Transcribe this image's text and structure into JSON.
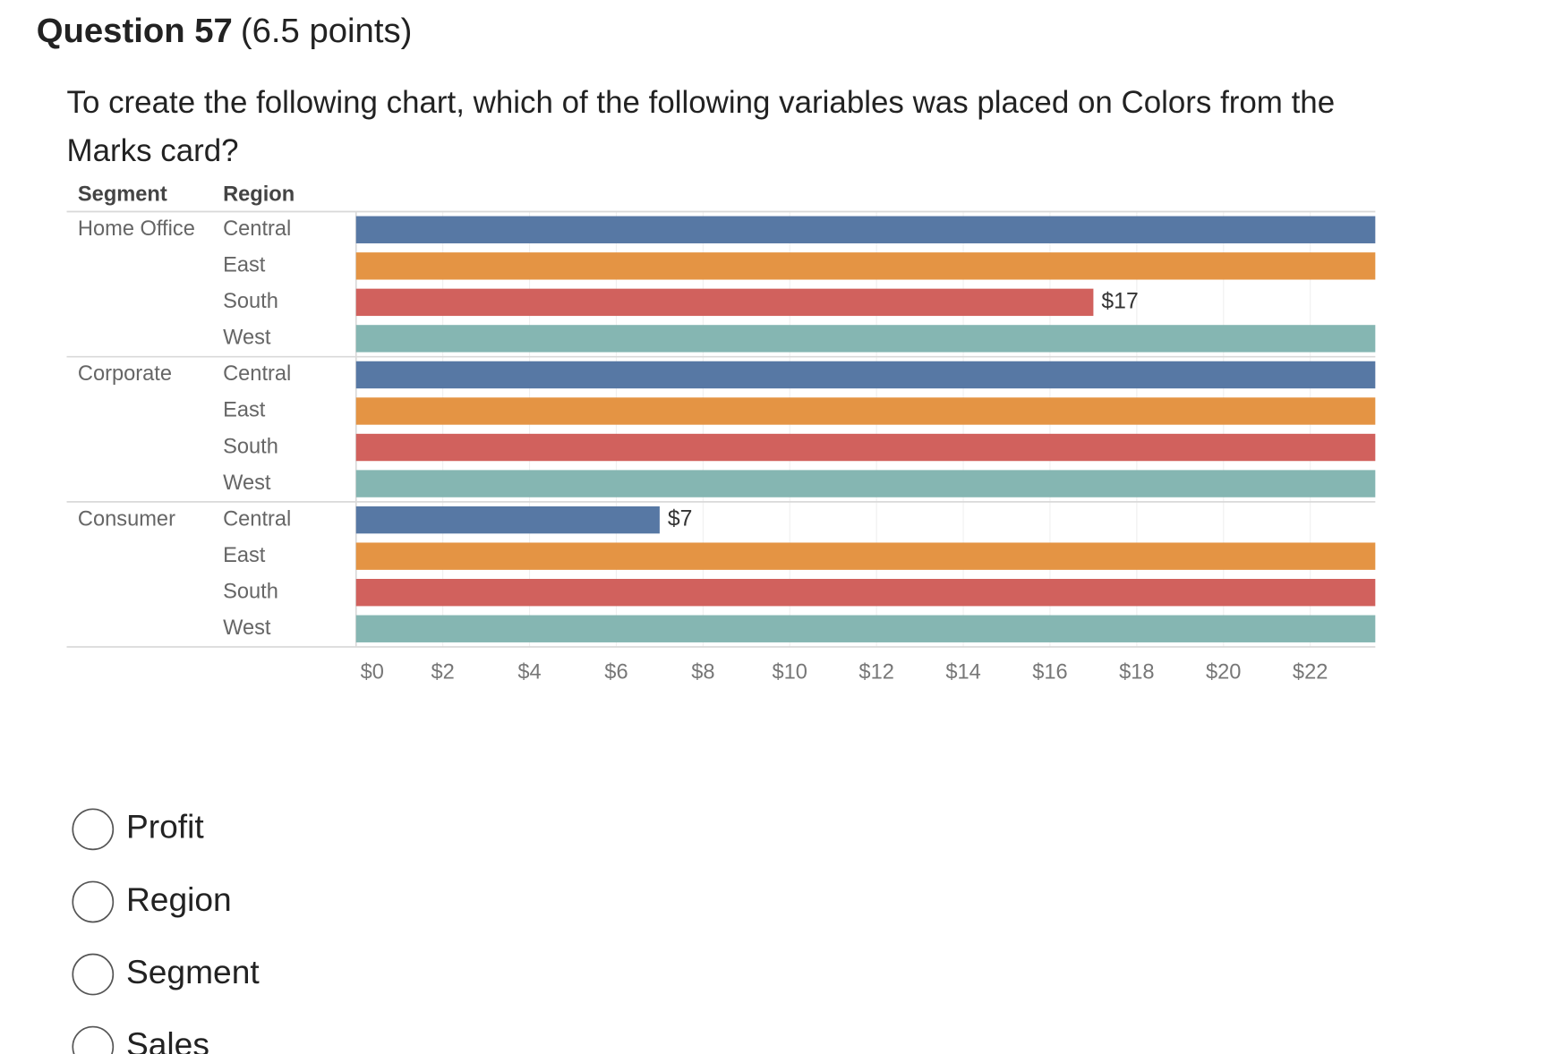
{
  "header": {
    "label": "Question 57",
    "points": "(6.5 points)"
  },
  "question": "To create the following chart, which of the following variables was placed on Colors from the Marks card?",
  "chart_data": {
    "type": "bar",
    "orientation": "horizontal",
    "row_headers": [
      "Segment",
      "Region"
    ],
    "groups": [
      "Home Office",
      "Corporate",
      "Consumer"
    ],
    "categories": [
      "Central",
      "East",
      "South",
      "West",
      "Central",
      "East",
      "South",
      "West",
      "Central",
      "East",
      "South",
      "West"
    ],
    "values": [
      23.5,
      23.5,
      17,
      23.5,
      23.5,
      23.5,
      23.5,
      23.5,
      7,
      23.5,
      23.5,
      23.5
    ],
    "value_labels": [
      null,
      null,
      "$17",
      null,
      null,
      null,
      null,
      null,
      "$7",
      null,
      null,
      null
    ],
    "colors": [
      "#5778a4",
      "#e49444",
      "#d1615d",
      "#85b6b2"
    ],
    "xlim": [
      0,
      23.5
    ],
    "xticks": [
      {
        "value": 0,
        "label": "$0"
      },
      {
        "value": 2,
        "label": "$2"
      },
      {
        "value": 4,
        "label": "$4"
      },
      {
        "value": 6,
        "label": "$6"
      },
      {
        "value": 8,
        "label": "$8"
      },
      {
        "value": 10,
        "label": "$10"
      },
      {
        "value": 12,
        "label": "$12"
      },
      {
        "value": 14,
        "label": "$14"
      },
      {
        "value": 16,
        "label": "$16"
      },
      {
        "value": 18,
        "label": "$18"
      },
      {
        "value": 20,
        "label": "$20"
      },
      {
        "value": 22,
        "label": "$22"
      }
    ],
    "grid": true
  },
  "options": [
    "Profit",
    "Region",
    "Segment",
    "Sales"
  ]
}
